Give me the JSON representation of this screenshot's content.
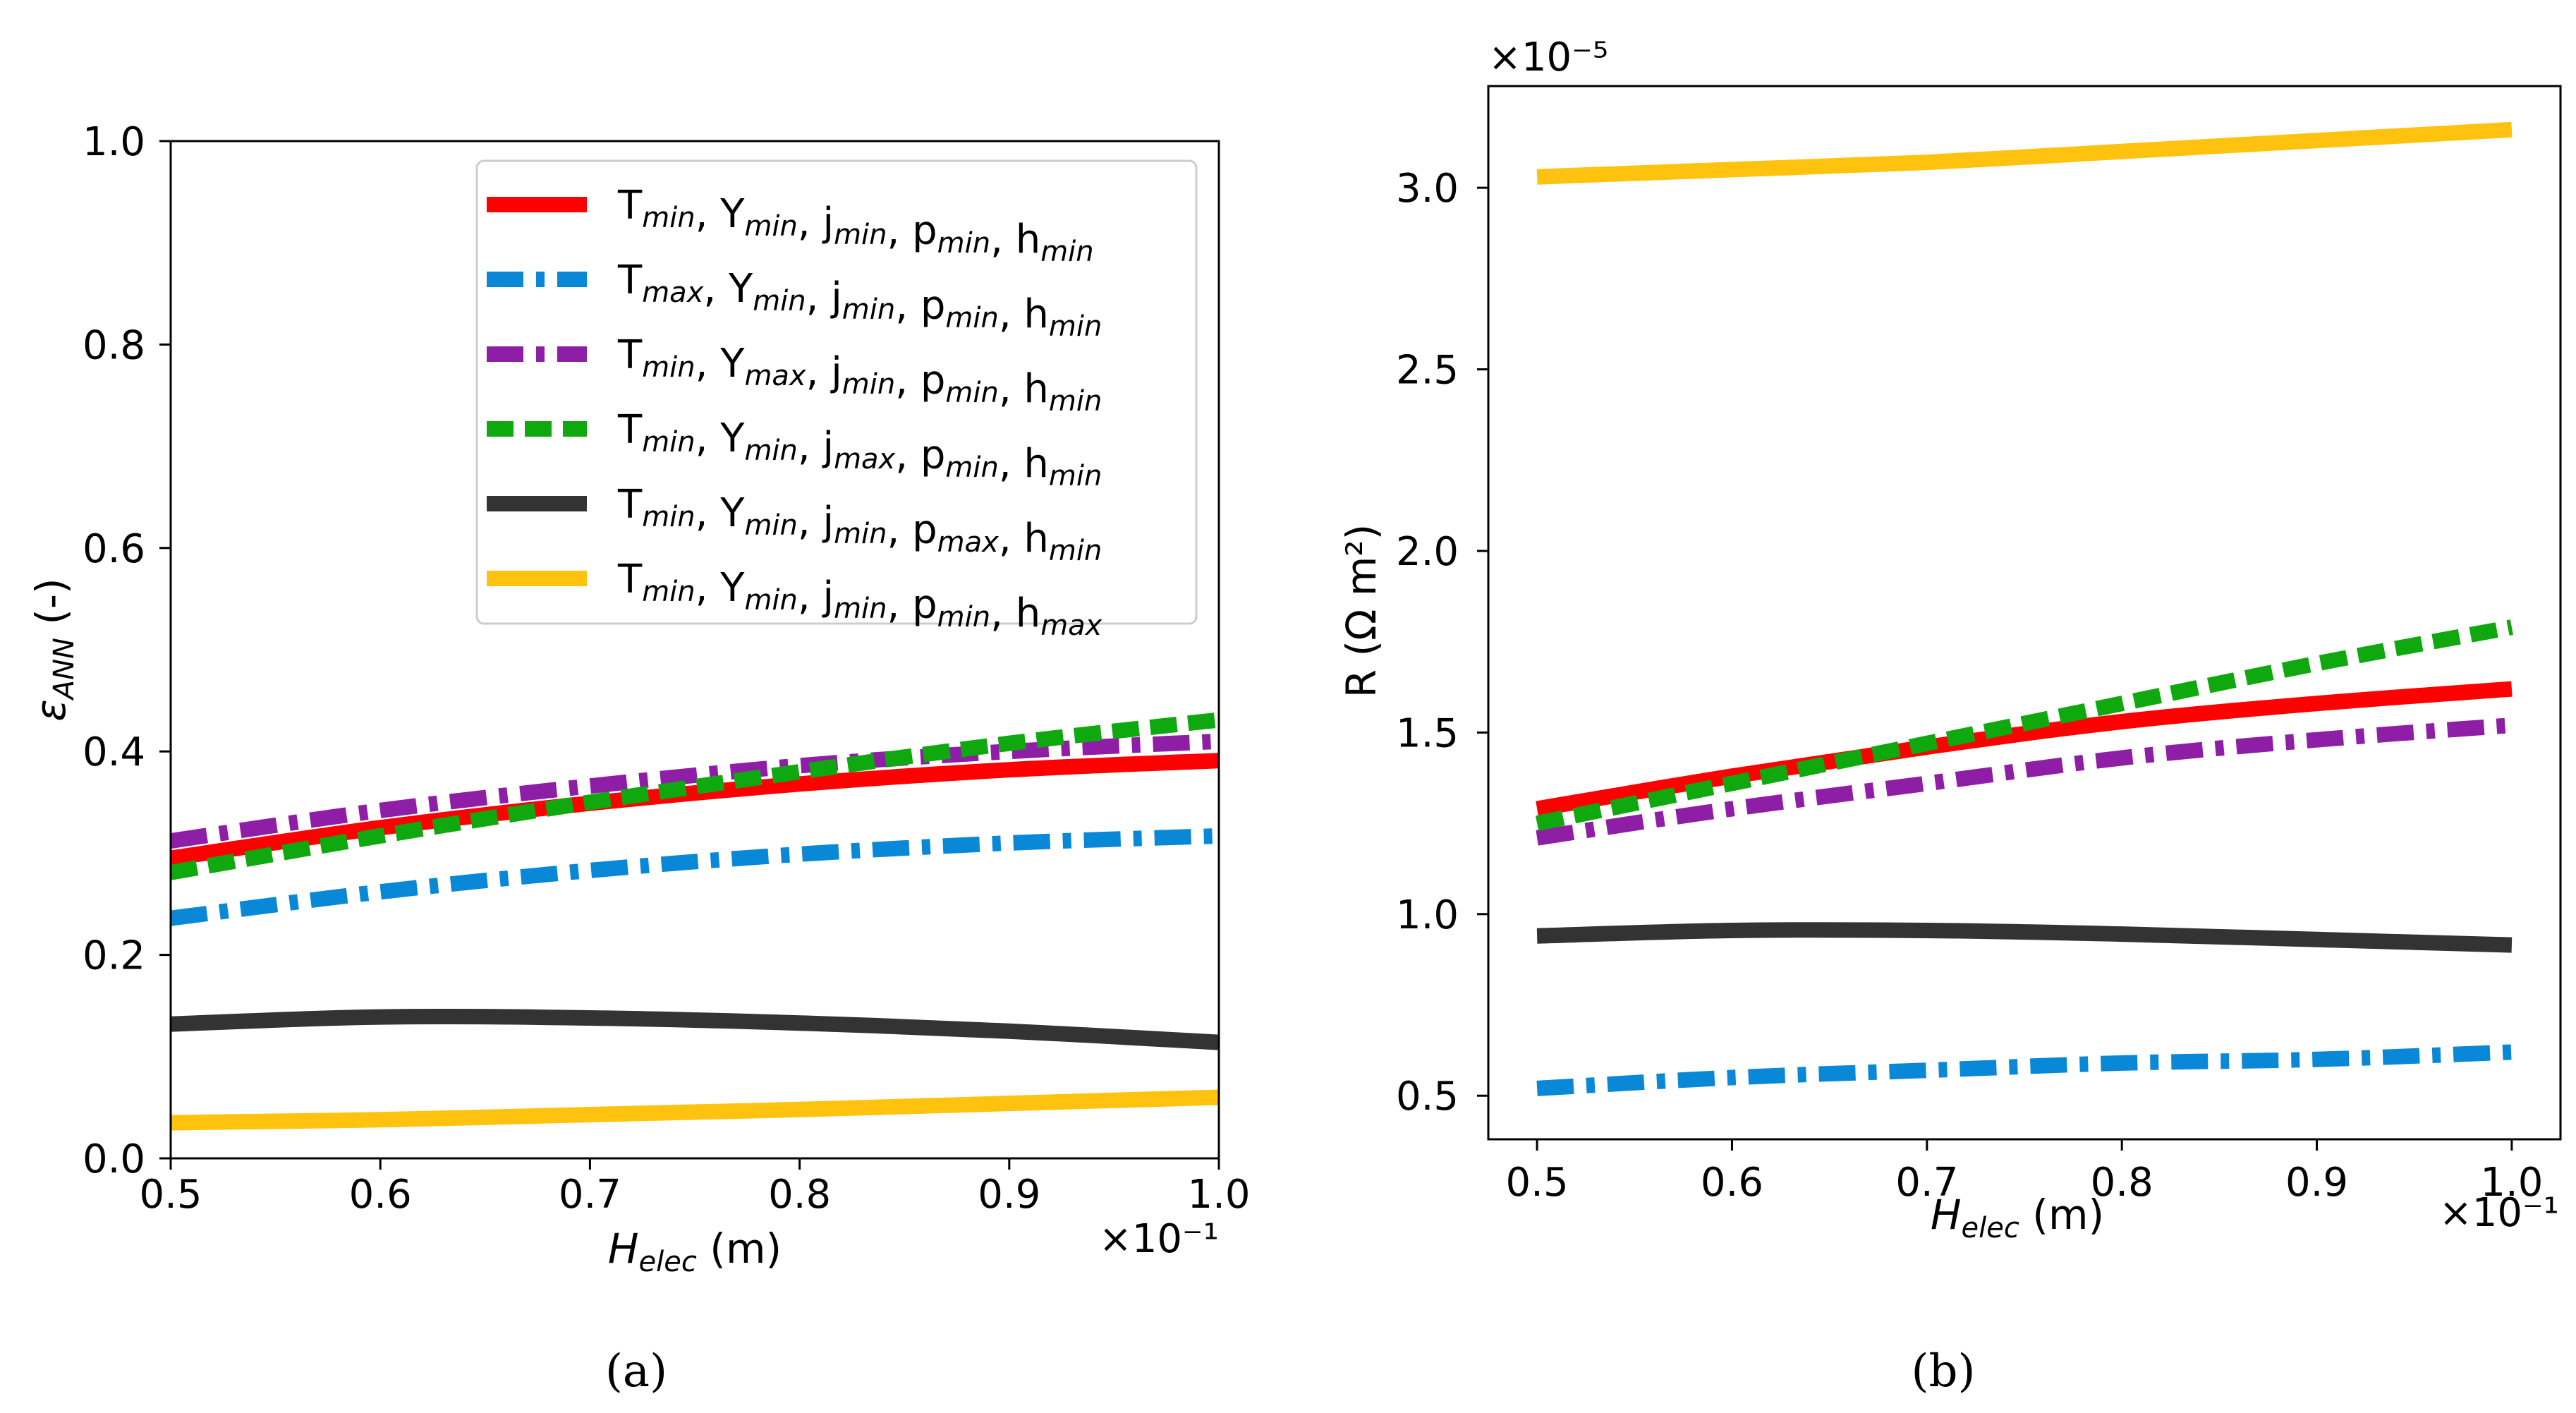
{
  "chart_data": [
    {
      "panel": "a",
      "caption": "(a)",
      "type": "line",
      "xlabel": "H_elec (m)",
      "xlabel_main": "H",
      "xlabel_sub": "elec",
      "xlabel_unit": " (m)",
      "ylabel": "ε_ANN (-)",
      "ylabel_main": "ε",
      "ylabel_sub": "ANN",
      "ylabel_unit": " (-)",
      "x_multiplier": "×10⁻¹",
      "xlim": [
        0.5,
        1.0
      ],
      "ylim": [
        0.0,
        1.0
      ],
      "xticks": [
        "0.5",
        "0.6",
        "0.7",
        "0.8",
        "0.9",
        "1.0"
      ],
      "yticks": [
        "0.0",
        "0.2",
        "0.4",
        "0.6",
        "0.8",
        "1.0"
      ],
      "grid": false,
      "legend_position": "top-right",
      "x": [
        0.5,
        0.6,
        0.7,
        0.8,
        0.9,
        1.0
      ],
      "series": [
        {
          "name": "Tmin, Ymin, jmin, pmin, hmin",
          "color": "#ff0000",
          "style": "solid",
          "values": [
            0.295,
            0.325,
            0.349,
            0.368,
            0.382,
            0.391
          ]
        },
        {
          "name": "Tmax, Ymin, jmin, pmin, hmin",
          "color": "#0a88d8",
          "style": "dashdot",
          "values": [
            0.236,
            0.262,
            0.283,
            0.299,
            0.31,
            0.317
          ]
        },
        {
          "name": "Tmin, Ymax, jmin, pmin, hmin",
          "color": "#8e1ea6",
          "style": "dashdot",
          "values": [
            0.312,
            0.342,
            0.366,
            0.386,
            0.4,
            0.41
          ]
        },
        {
          "name": "Tmin, Ymin, jmax, pmin, hmin",
          "color": "#0fa80f",
          "style": "dashed",
          "values": [
            0.281,
            0.317,
            0.35,
            0.38,
            0.408,
            0.431
          ]
        },
        {
          "name": "Tmin, Ymin, jmin, pmax, hmin",
          "color": "#333333",
          "style": "solid",
          "values": [
            0.132,
            0.139,
            0.138,
            0.133,
            0.125,
            0.114
          ]
        },
        {
          "name": "Tmin, Ymin, jmin, pmin, hmax",
          "color": "#ffc20e",
          "style": "solid",
          "values": [
            0.035,
            0.038,
            0.043,
            0.048,
            0.054,
            0.06
          ]
        }
      ]
    },
    {
      "panel": "b",
      "caption": "(b)",
      "type": "line",
      "xlabel": "H_elec (m)",
      "xlabel_main": "H",
      "xlabel_sub": "elec",
      "xlabel_unit": " (m)",
      "ylabel": "R (Ω m²)",
      "x_multiplier": "×10⁻¹",
      "y_multiplier": "×10⁻⁵",
      "xlim": [
        0.475,
        1.025
      ],
      "ylim": [
        0.38,
        3.28
      ],
      "xticks": [
        "0.5",
        "0.6",
        "0.7",
        "0.8",
        "0.9",
        "1.0"
      ],
      "yticks": [
        "0.5",
        "1.0",
        "1.5",
        "2.0",
        "2.5",
        "3.0"
      ],
      "grid": false,
      "x": [
        0.5,
        0.6,
        0.7,
        0.8,
        0.9,
        1.0
      ],
      "series": [
        {
          "color": "#ff0000",
          "style": "solid",
          "values": [
            1.29,
            1.38,
            1.46,
            1.53,
            1.58,
            1.62
          ]
        },
        {
          "color": "#0a88d8",
          "style": "dashdot",
          "values": [
            0.52,
            0.55,
            0.57,
            0.59,
            0.6,
            0.62
          ]
        },
        {
          "color": "#8e1ea6",
          "style": "dashdot",
          "values": [
            1.21,
            1.29,
            1.36,
            1.43,
            1.48,
            1.52
          ]
        },
        {
          "color": "#0fa80f",
          "style": "dashed",
          "values": [
            1.25,
            1.36,
            1.47,
            1.58,
            1.69,
            1.79
          ]
        },
        {
          "color": "#333333",
          "style": "solid",
          "values": [
            0.94,
            0.955,
            0.955,
            0.945,
            0.93,
            0.915
          ]
        },
        {
          "color": "#ffc20e",
          "style": "solid",
          "values": [
            3.03,
            3.05,
            3.07,
            3.1,
            3.13,
            3.16
          ]
        }
      ]
    }
  ]
}
